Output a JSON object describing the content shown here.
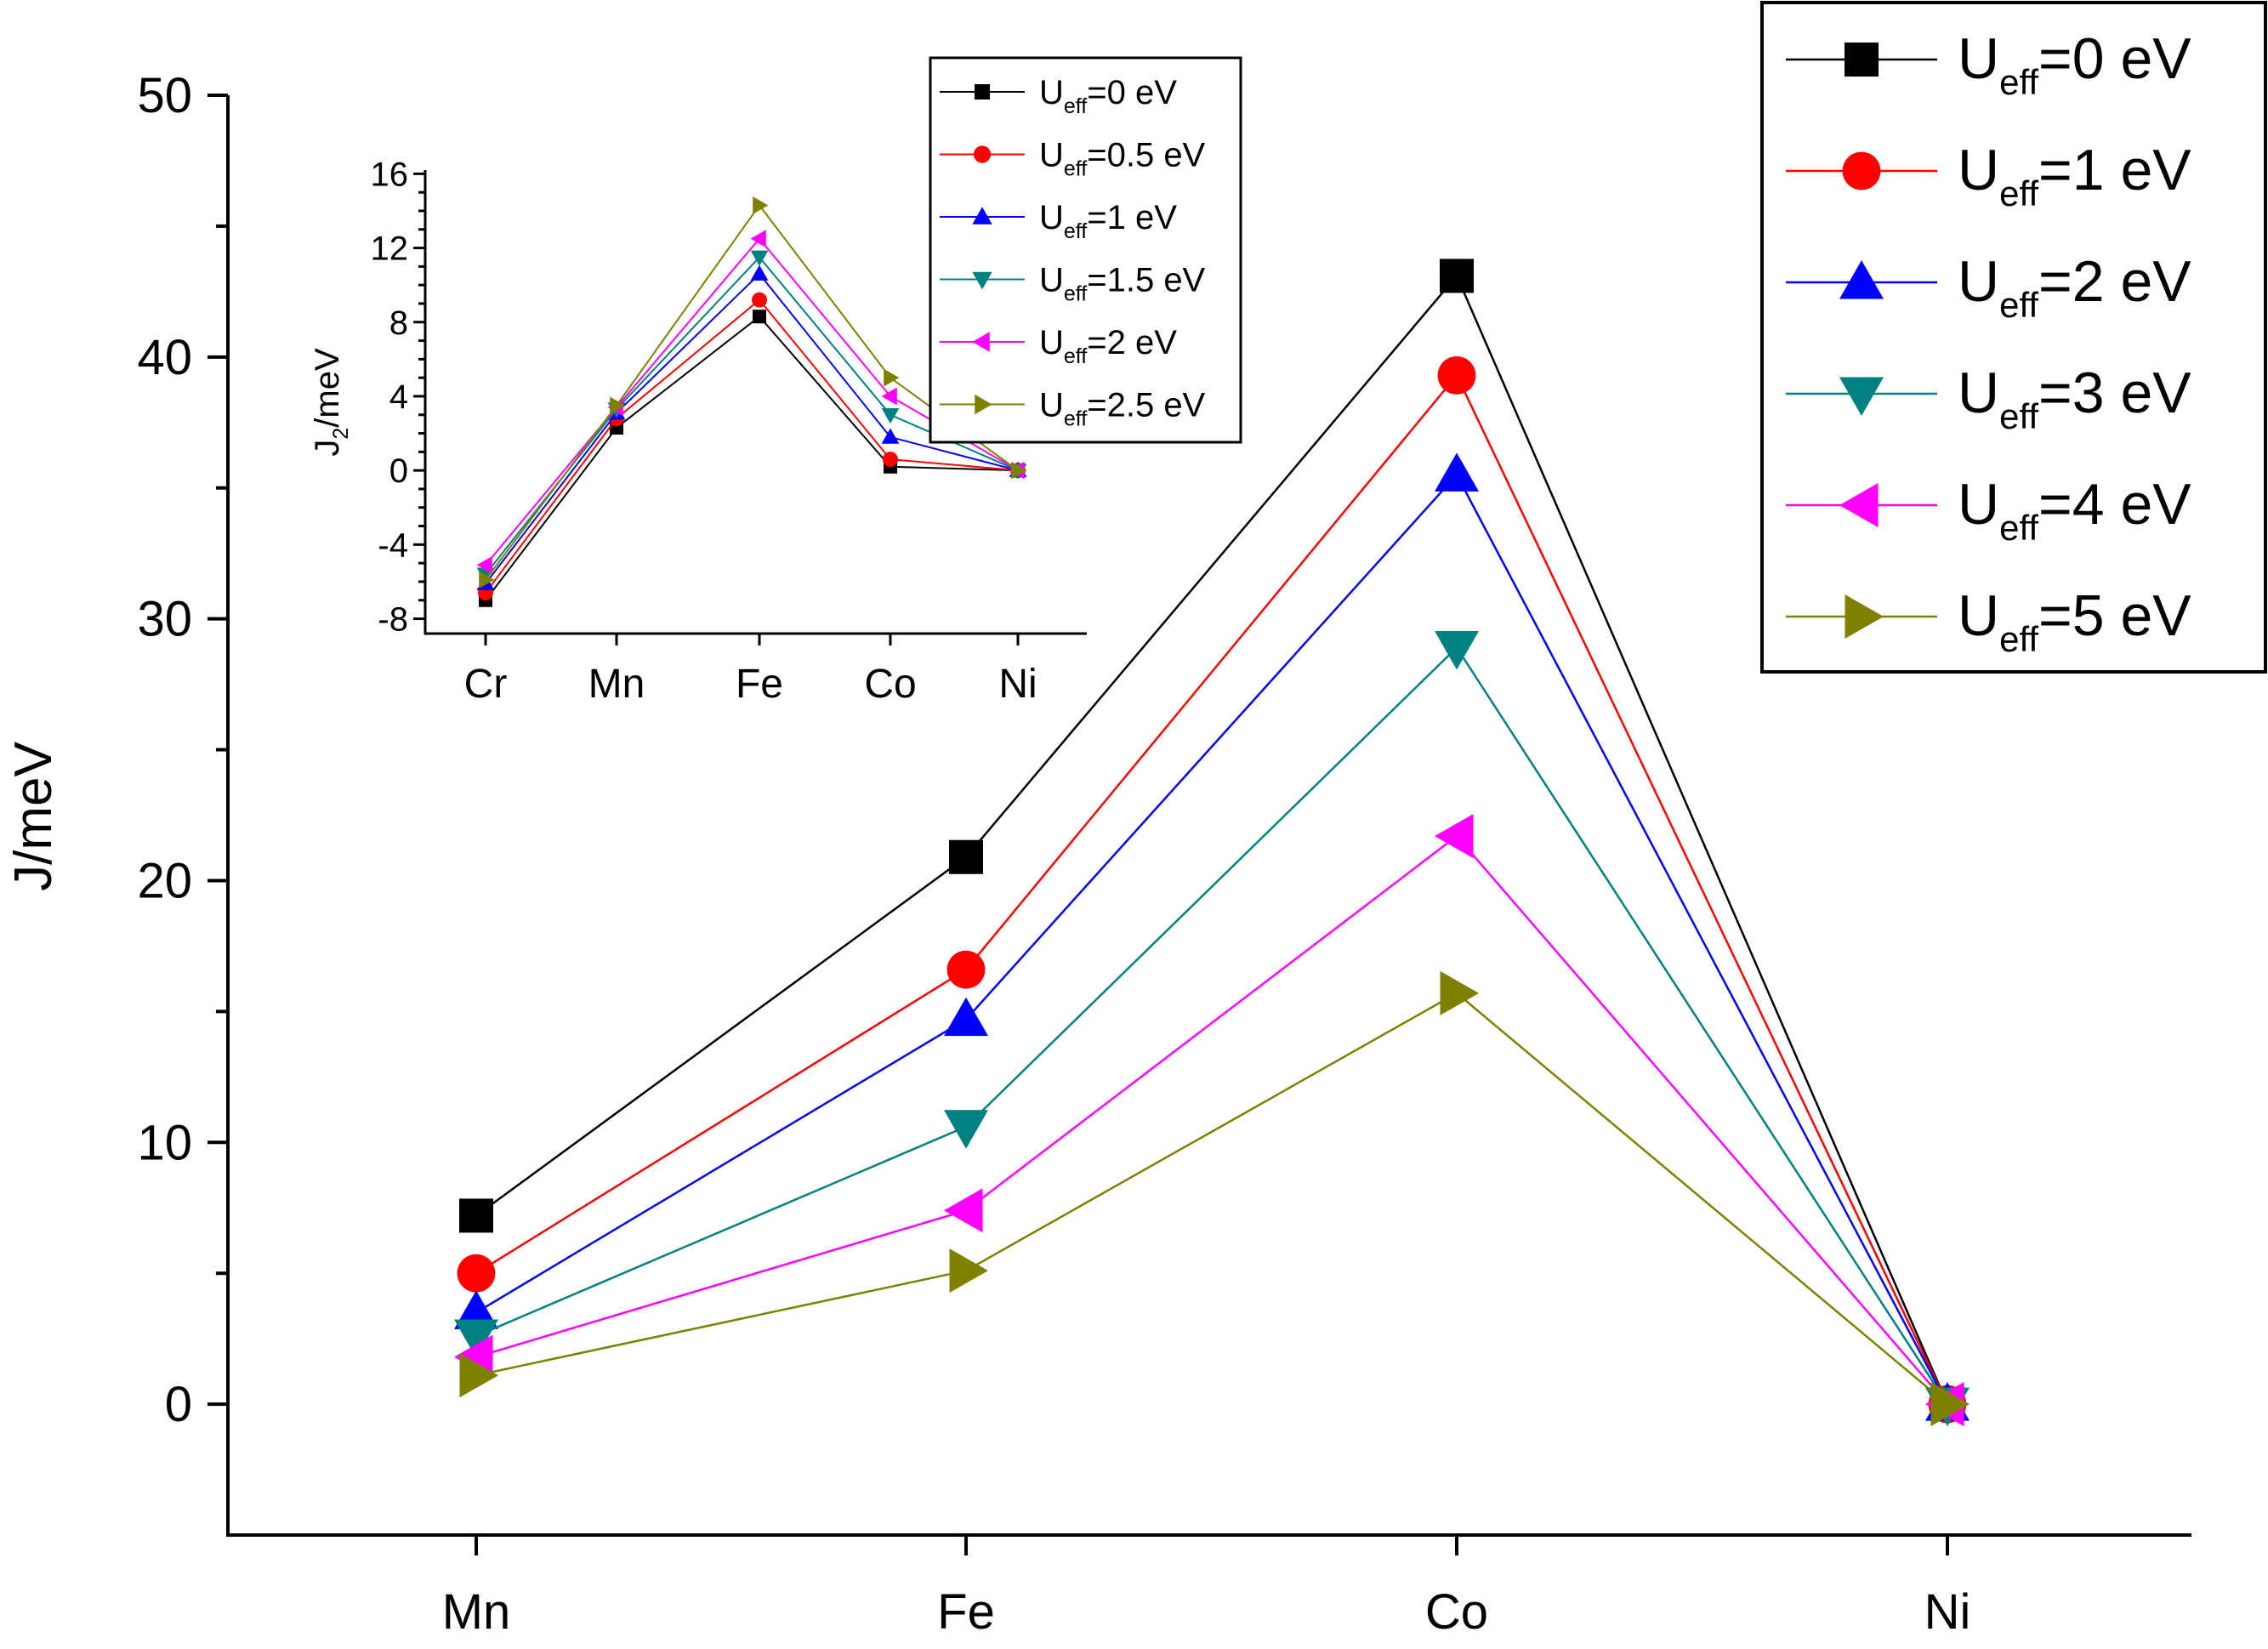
{
  "chart_data": [
    {
      "type": "line",
      "id": "main",
      "title": "",
      "xlabel": "",
      "ylabel": "J/meV",
      "categories": [
        "Mn",
        "Fe",
        "Co",
        "Ni"
      ],
      "ylim": [
        -5,
        50
      ],
      "yticks": [
        "0",
        "10",
        "20",
        "30",
        "40",
        "50"
      ],
      "ytick_values": [
        0,
        10,
        20,
        30,
        40,
        50
      ],
      "legend_position": "top-right",
      "series": [
        {
          "name_main": "U",
          "name_sub": "eff",
          "name_rest": "=0 eV",
          "color": "#000000",
          "marker": "square",
          "values": [
            7.2,
            20.9,
            43.1,
            0
          ]
        },
        {
          "name_main": "U",
          "name_sub": "eff",
          "name_rest": "=1 eV",
          "color": "#ff0000",
          "marker": "circle",
          "values": [
            5.0,
            16.6,
            39.3,
            0
          ]
        },
        {
          "name_main": "U",
          "name_sub": "eff",
          "name_rest": "=2 eV",
          "color": "#0000ff",
          "marker": "triangle-up",
          "values": [
            3.5,
            14.7,
            35.5,
            0
          ]
        },
        {
          "name_main": "U",
          "name_sub": "eff",
          "name_rest": "=3 eV",
          "color": "#008080",
          "marker": "triangle-down",
          "values": [
            2.6,
            10.6,
            28.9,
            0
          ]
        },
        {
          "name_main": "U",
          "name_sub": "eff",
          "name_rest": "=4 eV",
          "color": "#ff00ff",
          "marker": "triangle-left",
          "values": [
            1.8,
            7.4,
            21.7,
            0
          ]
        },
        {
          "name_main": "U",
          "name_sub": "eff",
          "name_rest": "=5 eV",
          "color": "#808000",
          "marker": "triangle-right",
          "values": [
            1.1,
            5.1,
            15.7,
            0
          ]
        }
      ]
    },
    {
      "type": "line",
      "id": "inset",
      "title": "",
      "xlabel": "",
      "ylabel_main": "J",
      "ylabel_sub": "2",
      "ylabel_rest": "/meV",
      "categories": [
        "Cr",
        "Mn",
        "Fe",
        "Co",
        "Ni"
      ],
      "ylim": [
        -8,
        16
      ],
      "yticks": [
        "-8",
        "-4",
        "0",
        "4",
        "8",
        "12",
        "16"
      ],
      "ytick_values": [
        -8,
        -4,
        0,
        4,
        8,
        12,
        16
      ],
      "legend_position": "top-right",
      "series": [
        {
          "name_main": "U",
          "name_sub": "eff",
          "name_rest": "=0 eV",
          "color": "#000000",
          "marker": "square",
          "values": [
            -7.0,
            2.3,
            8.3,
            0.2,
            0
          ]
        },
        {
          "name_main": "U",
          "name_sub": "eff",
          "name_rest": "=0.5 eV",
          "color": "#ff0000",
          "marker": "circle",
          "values": [
            -6.6,
            2.8,
            9.2,
            0.6,
            0
          ]
        },
        {
          "name_main": "U",
          "name_sub": "eff",
          "name_rest": "=1 eV",
          "color": "#0000ff",
          "marker": "triangle-up",
          "values": [
            -6.1,
            3.1,
            10.6,
            1.8,
            0
          ]
        },
        {
          "name_main": "U",
          "name_sub": "eff",
          "name_rest": "=1.5 eV",
          "color": "#008080",
          "marker": "triangle-down",
          "values": [
            -5.6,
            3.3,
            11.5,
            3.0,
            0
          ]
        },
        {
          "name_main": "U",
          "name_sub": "eff",
          "name_rest": "=2 eV",
          "color": "#ff00ff",
          "marker": "triangle-left",
          "values": [
            -5.1,
            3.4,
            12.5,
            4.0,
            0
          ]
        },
        {
          "name_main": "U",
          "name_sub": "eff",
          "name_rest": "=2.5 eV",
          "color": "#808000",
          "marker": "triangle-right",
          "values": [
            -5.9,
            3.5,
            14.3,
            5.0,
            0
          ]
        }
      ]
    }
  ]
}
